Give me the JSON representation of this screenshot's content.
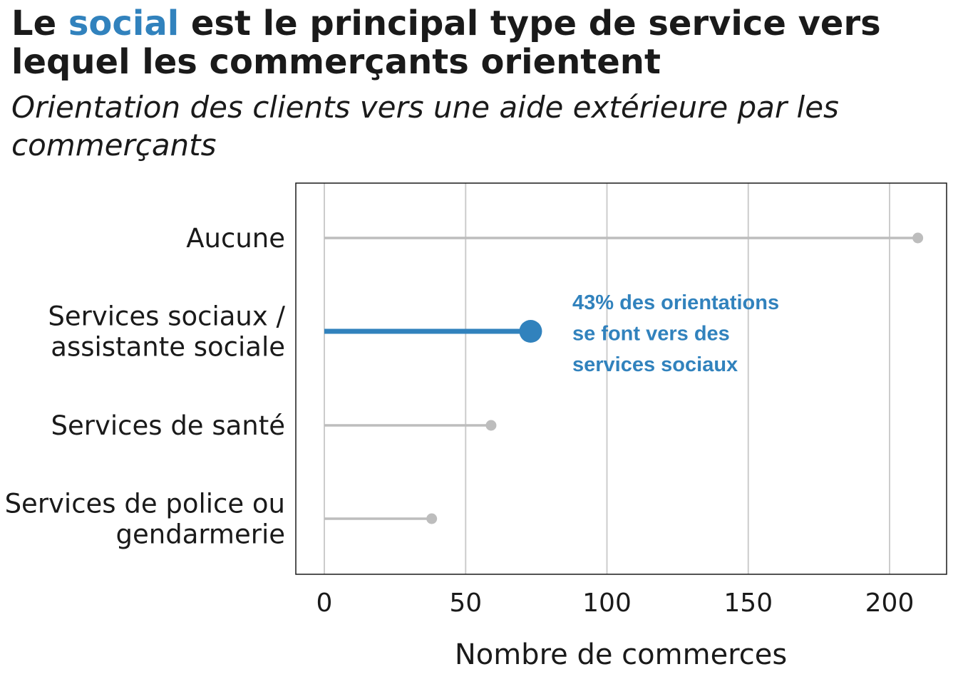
{
  "title": {
    "prefix": "Le",
    "highlight": "social",
    "suffix": "est le principal type de service vers lequel les commerçants orientent",
    "highlight_color": "#3182bd"
  },
  "subtitle": "Orientation des clients vers une aide extérieure par les commerçants",
  "annotation": {
    "lines": [
      "43% des orientations",
      "se font vers des",
      "services sociaux"
    ],
    "color": "#3182bd"
  },
  "colors": {
    "highlight": "#3182bd",
    "muted": "#bdbdbd",
    "grid": "#cccccc",
    "panel_border": "#1a1a1a"
  },
  "chart_data": {
    "type": "lollipop",
    "orientation": "horizontal",
    "xlabel": "Nombre de commerces",
    "ylabel": "",
    "xlim": [
      -10,
      220
    ],
    "xticks": [
      0,
      50,
      100,
      150,
      200
    ],
    "grid": "vertical",
    "categories": [
      {
        "lines": [
          "Aucune"
        ],
        "value": 210,
        "highlight": false
      },
      {
        "lines": [
          "Services sociaux /",
          "assistante sociale"
        ],
        "value": 73,
        "highlight": true
      },
      {
        "lines": [
          "Services de santé"
        ],
        "value": 59,
        "highlight": false
      },
      {
        "lines": [
          "Services de police ou",
          "gendarmerie"
        ],
        "value": 38,
        "highlight": false
      }
    ]
  }
}
